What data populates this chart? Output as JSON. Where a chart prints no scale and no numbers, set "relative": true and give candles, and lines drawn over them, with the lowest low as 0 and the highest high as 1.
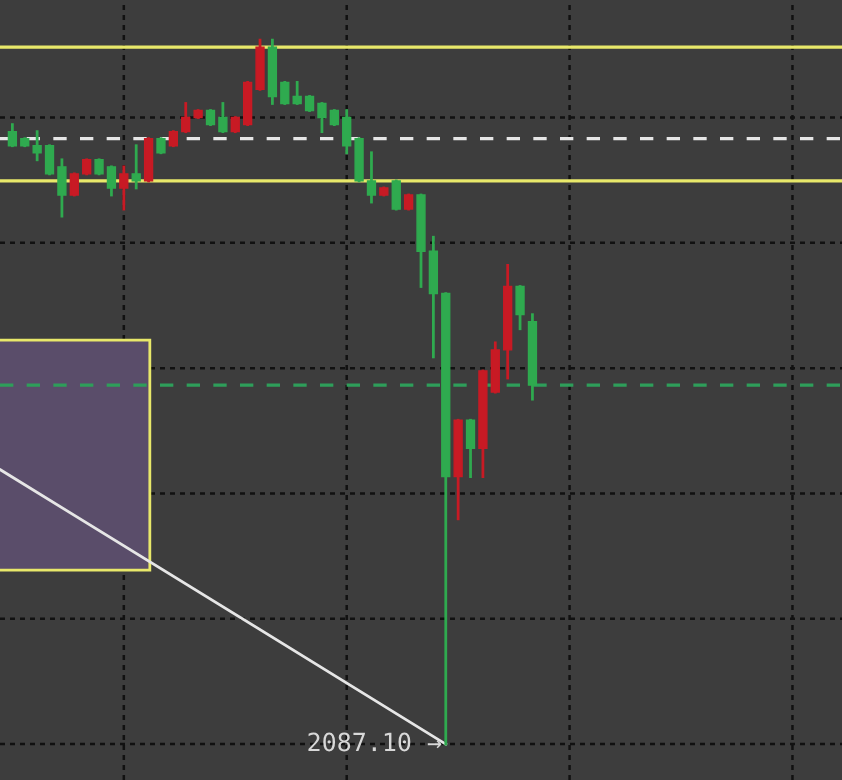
{
  "chart_data": {
    "type": "candlestick",
    "relative": true,
    "grid": true,
    "categories": [
      null,
      null,
      null,
      null,
      null,
      null,
      null,
      null,
      null,
      null,
      null,
      null,
      null,
      null,
      null,
      null,
      null,
      null,
      null,
      null,
      null,
      null,
      null,
      null,
      null,
      null,
      null,
      null,
      null,
      null,
      null,
      null,
      null,
      null,
      null,
      null,
      null,
      null,
      null,
      null,
      null,
      null,
      null
    ],
    "ohlc": [
      [
        0.87,
        0.88,
        0.85,
        0.85
      ],
      [
        0.86,
        0.86,
        0.85,
        0.85
      ],
      [
        0.85,
        0.87,
        0.83,
        0.84
      ],
      [
        0.85,
        0.85,
        0.81,
        0.81
      ],
      [
        0.82,
        0.83,
        0.75,
        0.78
      ],
      [
        0.78,
        0.81,
        0.78,
        0.81
      ],
      [
        0.81,
        0.83,
        0.81,
        0.83
      ],
      [
        0.83,
        0.83,
        0.81,
        0.81
      ],
      [
        0.82,
        0.82,
        0.78,
        0.79
      ],
      [
        0.79,
        0.82,
        0.76,
        0.81
      ],
      [
        0.81,
        0.85,
        0.79,
        0.8
      ],
      [
        0.8,
        0.86,
        0.8,
        0.86
      ],
      [
        0.86,
        0.86,
        0.84,
        0.84
      ],
      [
        0.85,
        0.87,
        0.85,
        0.87
      ],
      [
        0.87,
        0.91,
        0.87,
        0.89
      ],
      [
        0.89,
        0.9,
        0.89,
        0.9
      ],
      [
        0.9,
        0.9,
        0.88,
        0.88
      ],
      [
        0.89,
        0.91,
        0.87,
        0.87
      ],
      [
        0.87,
        0.89,
        0.87,
        0.89
      ],
      [
        0.88,
        0.94,
        0.88,
        0.94
      ],
      [
        0.93,
        1.0,
        0.93,
        0.99
      ],
      [
        0.99,
        1.0,
        0.91,
        0.92
      ],
      [
        0.94,
        0.94,
        0.91,
        0.91
      ],
      [
        0.92,
        0.94,
        0.91,
        0.91
      ],
      [
        0.92,
        0.92,
        0.9,
        0.9
      ],
      [
        0.91,
        0.91,
        0.87,
        0.89
      ],
      [
        0.9,
        0.9,
        0.88,
        0.88
      ],
      [
        0.89,
        0.9,
        0.84,
        0.85
      ],
      [
        0.86,
        0.86,
        0.8,
        0.8
      ],
      [
        0.8,
        0.84,
        0.77,
        0.78
      ],
      [
        0.78,
        0.79,
        0.78,
        0.79
      ],
      [
        0.8,
        0.8,
        0.76,
        0.76
      ],
      [
        0.76,
        0.78,
        0.76,
        0.78
      ],
      [
        0.78,
        0.78,
        0.65,
        0.7
      ],
      [
        0.7,
        0.72,
        0.55,
        0.64
      ],
      [
        0.64,
        0.64,
        0.0,
        0.38
      ],
      [
        0.38,
        0.46,
        0.32,
        0.46
      ],
      [
        0.46,
        0.46,
        0.38,
        0.42
      ],
      [
        0.42,
        0.53,
        0.38,
        0.53
      ],
      [
        0.5,
        0.57,
        0.5,
        0.56
      ],
      [
        0.56,
        0.68,
        0.52,
        0.65
      ],
      [
        0.65,
        0.65,
        0.59,
        0.61
      ],
      [
        0.6,
        0.61,
        0.49,
        0.51
      ]
    ],
    "colors": [
      "#2faa4f",
      "#2faa4f",
      "#2faa4f",
      "#2faa4f",
      "#2faa4f",
      "#c81a24",
      "#c81a24",
      "#2faa4f",
      "#2faa4f",
      "#c81a24",
      "#2faa4f",
      "#c81a24",
      "#2faa4f",
      "#c81a24",
      "#c81a24",
      "#c81a24",
      "#2faa4f",
      "#2faa4f",
      "#c81a24",
      "#c81a24",
      "#c81a24",
      "#2faa4f",
      "#2faa4f",
      "#2faa4f",
      "#2faa4f",
      "#2faa4f",
      "#2faa4f",
      "#2faa4f",
      "#2faa4f",
      "#2faa4f",
      "#c81a24",
      "#2faa4f",
      "#c81a24",
      "#2faa4f",
      "#2faa4f",
      "#2faa4f",
      "#c81a24",
      "#2faa4f",
      "#c81a24",
      "#c81a24",
      "#c81a24",
      "#2faa4f",
      "#2faa4f"
    ],
    "ref_lines": [
      {
        "axis": "y",
        "value": 0.99,
        "color": "#e8e86a",
        "line_style": "solid"
      },
      {
        "axis": "y",
        "value": 0.8,
        "color": "#e8e86a",
        "line_style": "solid"
      },
      {
        "axis": "y",
        "value": 0.86,
        "color": "#e6e6e6",
        "line_style": "dashed"
      },
      {
        "axis": "y",
        "value": 0.51,
        "color": "#2e9e5a",
        "line_style": "dashed"
      }
    ],
    "annotations": [
      "2087.10 →"
    ]
  }
}
